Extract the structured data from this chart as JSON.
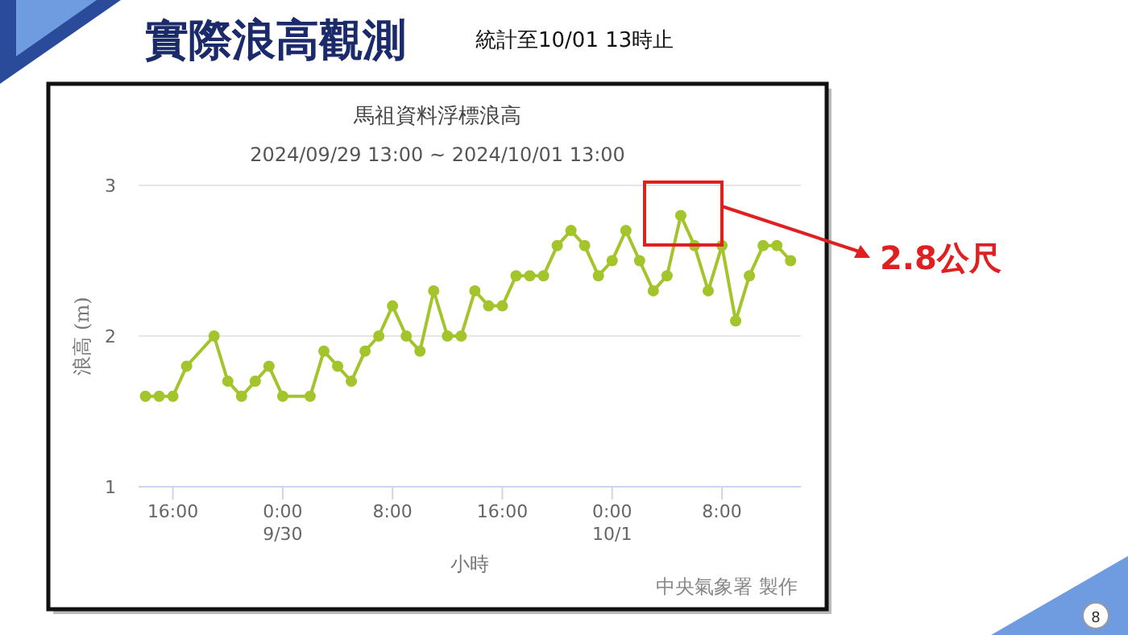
{
  "chart_data": {
    "type": "line",
    "title": "馬祖資料浮標浪高",
    "subtitle": "2024/09/29 13:00 ~ 2024/10/01 13:00",
    "xlabel": "小時",
    "ylabel": "浪高 (m)",
    "annotations": [
      "實際浪高觀測",
      "統計至10/01  13時止",
      "中央氣象署 製作",
      "8",
      "2.8公尺"
    ],
    "x": [
      "2024-09-29T14:00",
      "2024-09-29T15:00",
      "2024-09-29T16:00",
      "2024-09-29T17:00",
      "2024-09-29T19:00",
      "2024-09-29T20:00",
      "2024-09-29T21:00",
      "2024-09-29T22:00",
      "2024-09-29T23:00",
      "2024-09-30T00:00",
      "2024-09-30T02:00",
      "2024-09-30T03:00",
      "2024-09-30T04:00",
      "2024-09-30T05:00",
      "2024-09-30T06:00",
      "2024-09-30T07:00",
      "2024-09-30T08:00",
      "2024-09-30T09:00",
      "2024-09-30T10:00",
      "2024-09-30T11:00",
      "2024-09-30T12:00",
      "2024-09-30T13:00",
      "2024-09-30T14:00",
      "2024-09-30T15:00",
      "2024-09-30T16:00",
      "2024-09-30T17:00",
      "2024-09-30T18:00",
      "2024-09-30T19:00",
      "2024-09-30T20:00",
      "2024-09-30T21:00",
      "2024-09-30T22:00",
      "2024-09-30T23:00",
      "2024-10-01T00:00",
      "2024-10-01T01:00",
      "2024-10-01T02:00",
      "2024-10-01T03:00",
      "2024-10-01T04:00",
      "2024-10-01T05:00",
      "2024-10-01T06:00",
      "2024-10-01T07:00",
      "2024-10-01T08:00",
      "2024-10-01T09:00",
      "2024-10-01T10:00",
      "2024-10-01T11:00",
      "2024-10-01T12:00",
      "2024-10-01T13:00"
    ],
    "series": [
      {
        "color": "#a3c42a",
        "values": [
          1.6,
          1.6,
          1.6,
          1.8,
          2.0,
          1.7,
          1.6,
          1.7,
          1.8,
          1.6,
          1.6,
          1.9,
          1.8,
          1.7,
          1.9,
          2.0,
          2.2,
          2.0,
          1.9,
          2.3,
          2.0,
          2.0,
          2.3,
          2.2,
          2.2,
          2.4,
          2.4,
          2.4,
          2.6,
          2.7,
          2.6,
          2.4,
          2.5,
          2.7,
          2.5,
          2.3,
          2.4,
          2.8,
          2.6,
          2.3,
          2.6,
          2.1,
          2.4,
          2.6,
          2.6,
          2.5
        ]
      }
    ],
    "xlim": [
      "2024-09-29T13:30",
      "2024-10-01T13:45"
    ],
    "xticks": [
      {
        "value": "2024-09-29T16:00",
        "label": "16:00"
      },
      {
        "value": "2024-09-30T00:00",
        "label": "0:00\n9/30"
      },
      {
        "value": "2024-09-30T08:00",
        "label": "8:00"
      },
      {
        "value": "2024-09-30T16:00",
        "label": "16:00"
      },
      {
        "value": "2024-10-01T00:00",
        "label": "0:00\n10/1"
      },
      {
        "value": "2024-10-01T08:00",
        "label": "8:00"
      }
    ],
    "ylim": [
      1,
      3
    ],
    "yticks": [
      1,
      2,
      3
    ],
    "grid": "y",
    "marker": "circle",
    "line_style": "solid"
  }
}
